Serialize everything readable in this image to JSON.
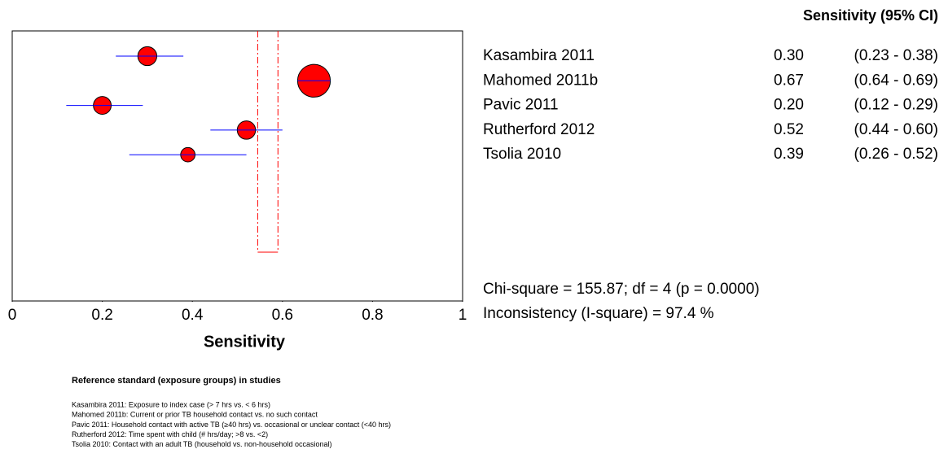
{
  "chart_data": {
    "type": "forest",
    "column_title": "Sensitivity (95% CI)",
    "xlabel": "Sensitivity",
    "categories": [
      "Kasambira 2011",
      "Mahomed 2011b",
      "Pavic 2011",
      "Rutherford 2012",
      "Tsolia 2010"
    ],
    "values": [
      0.3,
      0.67,
      0.2,
      0.52,
      0.39
    ],
    "value_labels": [
      "0.30",
      "0.67",
      "0.20",
      "0.52",
      "0.39"
    ],
    "lower": [
      0.23,
      0.64,
      0.12,
      0.44,
      0.26
    ],
    "upper": [
      0.38,
      0.69,
      0.29,
      0.6,
      0.52
    ],
    "ci_labels": [
      "(0.23 - 0.38)",
      "(0.64 - 0.69)",
      "(0.12 - 0.29)",
      "(0.44 - 0.60)",
      "(0.26 - 0.52)"
    ],
    "pooled_ci": [
      0.545,
      0.59
    ],
    "marker_color": "#ff0000",
    "ci_color": "#0000ff",
    "pooled_color": "#ff0000",
    "xlim": [
      0,
      1
    ],
    "xticks": [
      0,
      0.2,
      0.4,
      0.6,
      0.8,
      1
    ],
    "statistics": [
      "Chi-square = 155.87; df =  4 (p = 0.0000)",
      "Inconsistency (I-square) = 97.4 %"
    ],
    "notes_title": "Reference standard (exposure groups) in studies",
    "notes": [
      "Kasambira 2011: Exposure to index case (> 7 hrs vs. < 6 hrs)",
      "Mahomed 2011b: Current or prior TB household contact vs. no such contact",
      "Pavic 2011: Household contact with active TB (≥40 hrs) vs. occasional or unclear contact (<40 hrs)",
      "Rutherford 2012: Time spent with child (# hrs/day; >8 vs. <2)",
      "Tsolia 2010: Contact with an adult TB (household vs. non-household occasional)"
    ]
  }
}
